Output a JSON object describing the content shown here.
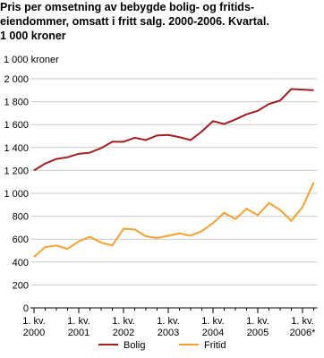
{
  "chart_data": {
    "type": "line",
    "title": [
      "Pris per omsetning av bebygde bolig- og fritids-",
      "eiendommer, omsatt i fritt salg. 2000-2006. Kvartal.",
      "1 000 kroner"
    ],
    "y_label": "1 000 kroner",
    "categories": [
      "1. kv. 2000",
      null,
      null,
      null,
      "1. kv. 2001",
      null,
      null,
      null,
      "1. kv. 2002",
      null,
      null,
      null,
      "1. kv. 2003",
      null,
      null,
      null,
      "1. kv. 2004",
      null,
      null,
      null,
      "1. kv. 2005",
      null,
      null,
      null,
      "1. kv. 2006*",
      null
    ],
    "series": [
      {
        "name": "Bolig",
        "color": "#a01e22",
        "values": [
          1200,
          1260,
          1300,
          1315,
          1345,
          1355,
          1395,
          1450,
          1450,
          1485,
          1465,
          1505,
          1510,
          1490,
          1465,
          1540,
          1630,
          1605,
          1645,
          1690,
          1720,
          1780,
          1810,
          1910,
          1905,
          1900
        ]
      },
      {
        "name": "Fritid",
        "color": "#f5a031",
        "values": [
          445,
          530,
          545,
          515,
          580,
          620,
          570,
          545,
          690,
          685,
          625,
          610,
          630,
          650,
          630,
          670,
          740,
          830,
          775,
          865,
          810,
          915,
          855,
          760,
          880,
          1095
        ]
      }
    ],
    "ylim": [
      0,
      2000
    ],
    "yticks": [
      0,
      200,
      400,
      600,
      800,
      {
        "value": 1000,
        "label": "1 000"
      },
      {
        "value": 1200,
        "label": "1 200"
      },
      {
        "value": 1400,
        "label": "1 400"
      },
      {
        "value": 1600,
        "label": "1 600"
      },
      {
        "value": 1800,
        "label": "1 800"
      },
      {
        "value": 2000,
        "label": "2 000"
      }
    ],
    "grid": true
  }
}
